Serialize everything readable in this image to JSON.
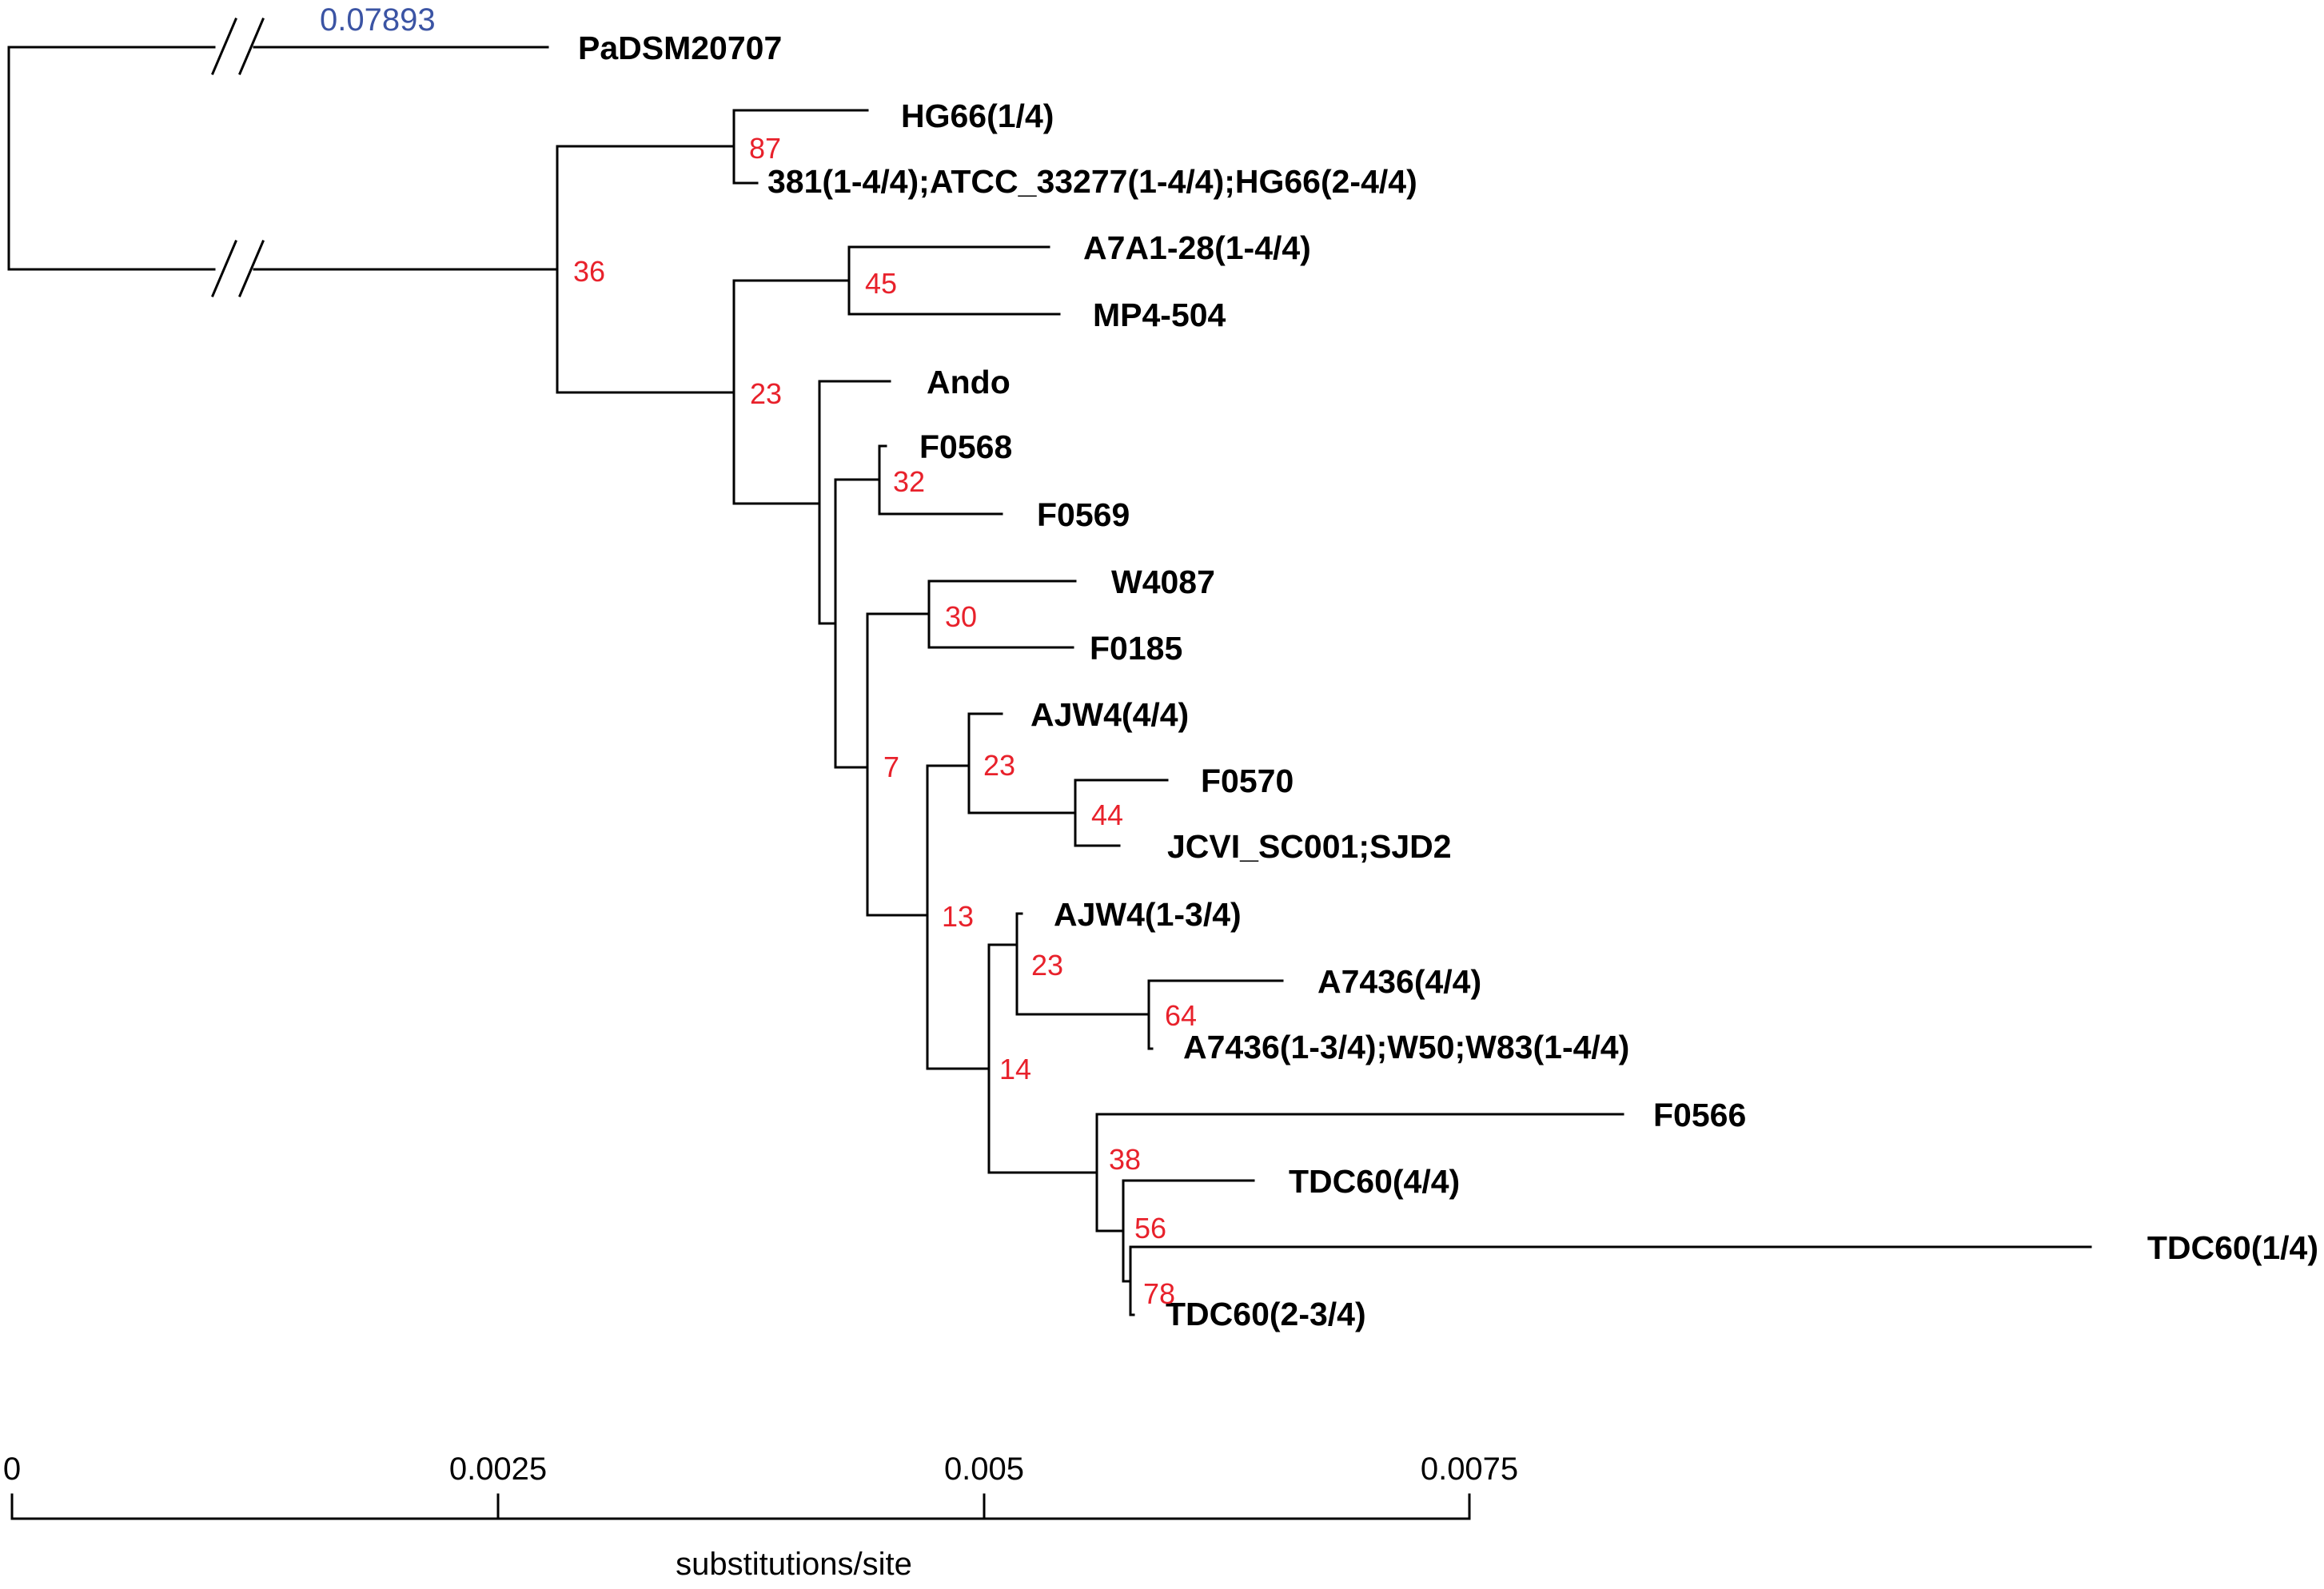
{
  "tree": {
    "truncated_branch_length": "0.07893",
    "leaves": {
      "padsm": "PaDSM20707",
      "hg66_1": "HG66(1/4)",
      "group381": "381(1-4/4);ATCC_33277(1-4/4);HG66(2-4/4)",
      "a7a1": "A7A1-28(1-4/4)",
      "mp4": "MP4-504",
      "ando": "Ando",
      "f0568": "F0568",
      "f0569": "F0569",
      "w4087": "W4087",
      "f0185": "F0185",
      "ajw4_4": "AJW4(4/4)",
      "f0570": "F0570",
      "jcvi": "JCVI_SC001;SJD2",
      "ajw4_13": "AJW4(1-3/4)",
      "a7436_4": "A7436(4/4)",
      "a7436_13": "A7436(1-3/4);W50;W83(1-4/4)",
      "f0566": "F0566",
      "tdc60_44": "TDC60(4/4)",
      "tdc60_14": "TDC60(1/4)",
      "tdc60_234": "TDC60(2-3/4)"
    },
    "support": {
      "n87": "87",
      "n36": "36",
      "n45": "45",
      "n23a": "23",
      "n32": "32",
      "n30": "30",
      "n7": "7",
      "n23b": "23",
      "n44": "44",
      "n13": "13",
      "n23c": "23",
      "n64": "64",
      "n14": "14",
      "n38": "38",
      "n56": "56",
      "n78": "78"
    }
  },
  "scale_axis": {
    "ticks": [
      "0",
      "0.0025",
      "0.005",
      "0.0075"
    ],
    "label": "substitutions/site"
  },
  "colors": {
    "branch": "#000000",
    "support": "#e8212b",
    "branch_length": "#3b54a4"
  }
}
